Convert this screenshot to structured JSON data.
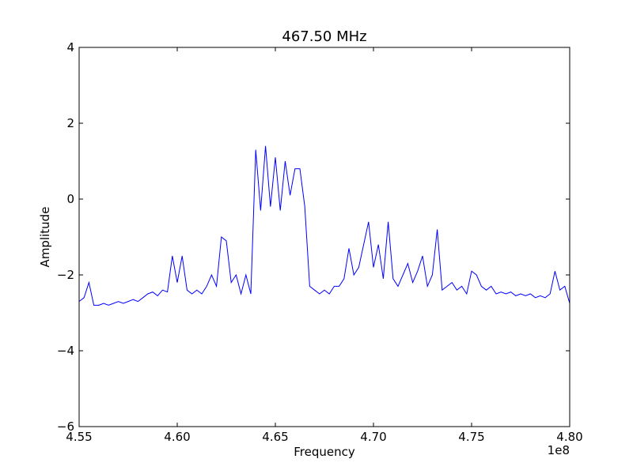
{
  "chart_data": {
    "type": "line",
    "title": "467.50 MHz",
    "xlabel": "Frequency",
    "ylabel": "Amplitude",
    "x_offset_label": "1e8",
    "xlim": [
      455000000,
      480000000
    ],
    "xticks": [
      {
        "value": 455000000,
        "label": "4.55"
      },
      {
        "value": 460000000,
        "label": "4.60"
      },
      {
        "value": 465000000,
        "label": "4.65"
      },
      {
        "value": 470000000,
        "label": "4.70"
      },
      {
        "value": 475000000,
        "label": "4.75"
      },
      {
        "value": 480000000,
        "label": "4.80"
      }
    ],
    "ylim": [
      -6,
      4
    ],
    "yticks": [
      {
        "value": -6,
        "label": "−6"
      },
      {
        "value": -4,
        "label": "−4"
      },
      {
        "value": -2,
        "label": "−2"
      },
      0,
      2,
      4
    ],
    "x": [
      455000000,
      455250000,
      455500000,
      455750000,
      456000000,
      456250000,
      456500000,
      456750000,
      457000000,
      457250000,
      457500000,
      457750000,
      458000000,
      458250000,
      458500000,
      458750000,
      459000000,
      459250000,
      459500000,
      459750000,
      460000000,
      460250000,
      460500000,
      460750000,
      461000000,
      461250000,
      461500000,
      461750000,
      462000000,
      462250000,
      462500000,
      462750000,
      463000000,
      463250000,
      463500000,
      463750000,
      464000000,
      464250000,
      464500000,
      464750000,
      465000000,
      465250000,
      465500000,
      465750000,
      466000000,
      466250000,
      466500000,
      466750000,
      467000000,
      467250000,
      467500000,
      467750000,
      468000000,
      468250000,
      468500000,
      468750000,
      469000000,
      469250000,
      469500000,
      469750000,
      470000000,
      470250000,
      470500000,
      470750000,
      471000000,
      471250000,
      471500000,
      471750000,
      472000000,
      472250000,
      472500000,
      472750000,
      473000000,
      473250000,
      473500000,
      473750000,
      474000000,
      474250000,
      474500000,
      474750000,
      475000000,
      475250000,
      475500000,
      475750000,
      476000000,
      476250000,
      476500000,
      476750000,
      477000000,
      477250000,
      477500000,
      477750000,
      478000000,
      478250000,
      478500000,
      478750000,
      479000000,
      479250000,
      479500000,
      479750000,
      480000000
    ],
    "series": [
      {
        "color": "#0000ff",
        "values": [
          -2.7,
          -2.6,
          -2.2,
          -2.8,
          -2.8,
          -2.75,
          -2.8,
          -2.75,
          -2.7,
          -2.75,
          -2.7,
          -2.65,
          -2.7,
          -2.6,
          -2.5,
          -2.45,
          -2.55,
          -2.4,
          -2.45,
          -1.5,
          -2.2,
          -1.5,
          -2.4,
          -2.5,
          -2.4,
          -2.5,
          -2.3,
          -2.0,
          -2.3,
          -1.0,
          -1.1,
          -2.2,
          -2.0,
          -2.5,
          -2.0,
          -2.5,
          1.3,
          -0.3,
          1.4,
          -0.2,
          1.1,
          -0.3,
          1.0,
          0.1,
          0.8,
          0.8,
          -0.2,
          -2.3,
          -2.4,
          -2.5,
          -2.4,
          -2.5,
          -2.3,
          -2.3,
          -2.1,
          -1.3,
          -2.0,
          -1.8,
          -1.2,
          -0.6,
          -1.8,
          -1.2,
          -2.1,
          -0.6,
          -2.1,
          -2.3,
          -2.0,
          -1.7,
          -2.2,
          -1.9,
          -1.5,
          -2.3,
          -2.0,
          -0.8,
          -2.4,
          -2.3,
          -2.2,
          -2.4,
          -2.3,
          -2.5,
          -1.9,
          -2.0,
          -2.3,
          -2.4,
          -2.3,
          -2.5,
          -2.45,
          -2.5,
          -2.45,
          -2.55,
          -2.5,
          -2.55,
          -2.5,
          -2.6,
          -2.55,
          -2.6,
          -2.5,
          -1.9,
          -2.4,
          -2.3,
          -2.75
        ]
      }
    ]
  }
}
